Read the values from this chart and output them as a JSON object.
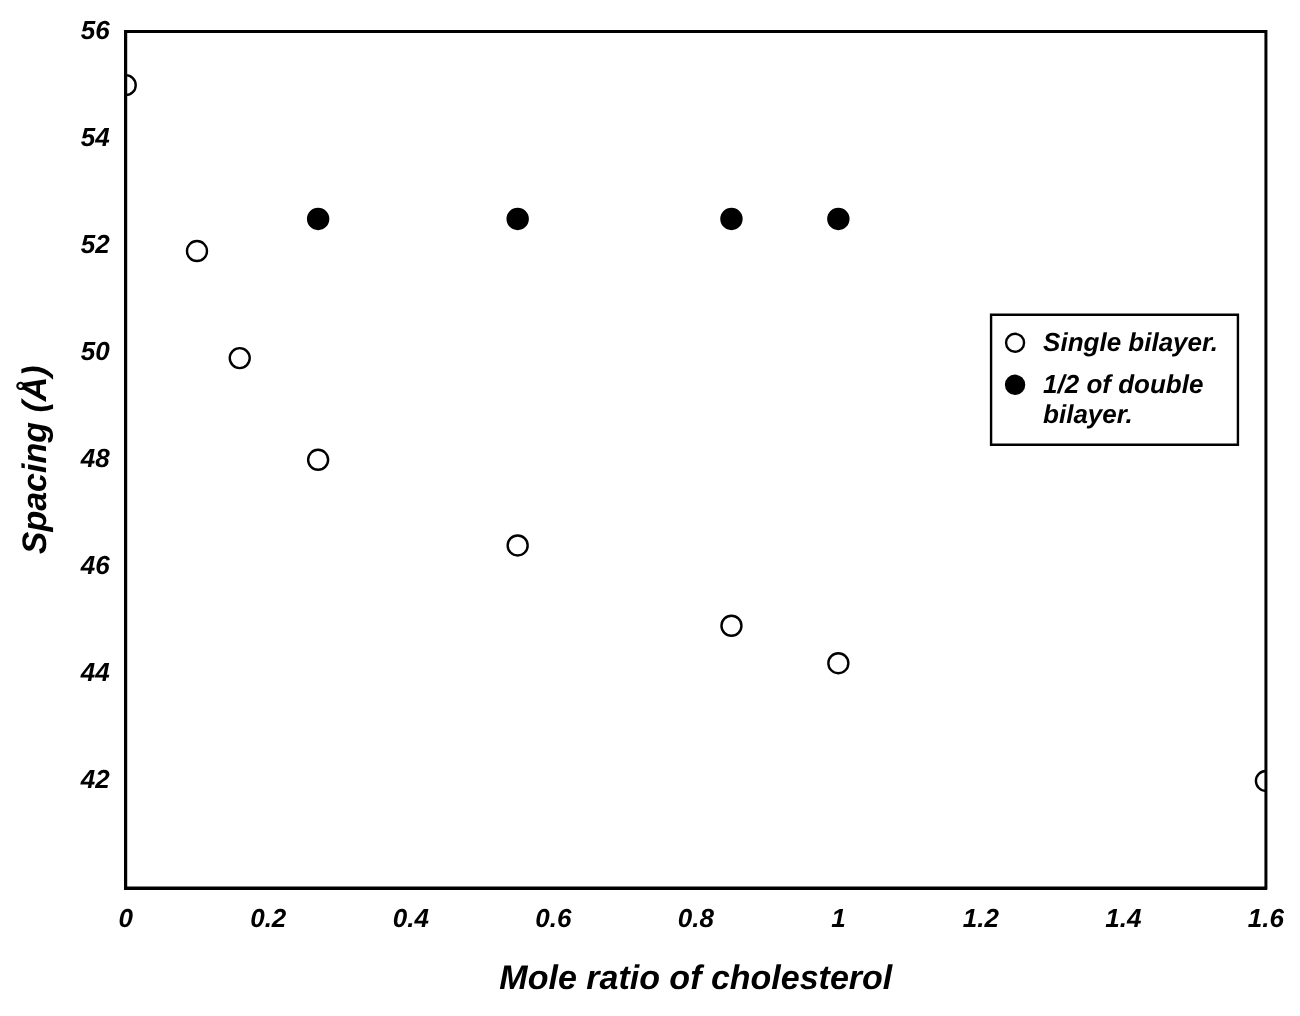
{
  "chart_data": {
    "type": "scatter",
    "xlabel": "Mole ratio of cholesterol",
    "ylabel": "Spacing (Å)",
    "xlim": [
      0,
      1.6
    ],
    "xticks": [
      0,
      0.2,
      0.4,
      0.6,
      0.8,
      1,
      1.2,
      1.4,
      1.6
    ],
    "ylim": [
      40,
      56
    ],
    "yticks": [
      42,
      44,
      46,
      48,
      50,
      52,
      54,
      56
    ],
    "grid": false,
    "legend": "right",
    "marker": "circle",
    "series": [
      {
        "name": "Single bilayer.",
        "color": "#ffffff",
        "x": [
          0,
          0.1,
          0.16,
          0.27,
          0.55,
          0.85,
          1,
          1.6
        ],
        "values": [
          55,
          51.9,
          49.9,
          48,
          46.4,
          44.9,
          44.2,
          42
        ]
      },
      {
        "name": "1/2 of double bilayer.",
        "color": "#000000",
        "x": [
          0.27,
          0.55,
          0.85,
          1
        ],
        "values": [
          52.5,
          52.5,
          52.5,
          52.5
        ]
      }
    ]
  }
}
